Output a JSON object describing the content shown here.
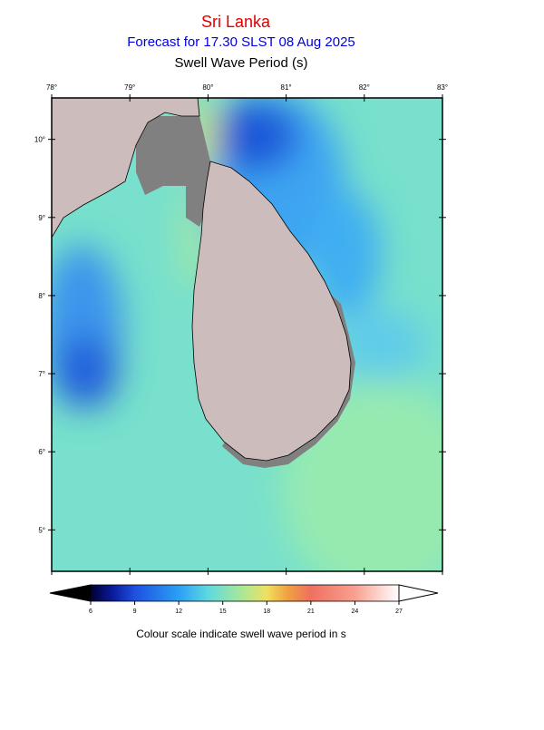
{
  "header": {
    "title": "Sri Lanka",
    "subtitle": "Forecast for  17.30 SLST 08 Aug 2025",
    "variable": "Swell Wave Period (s)"
  },
  "map": {
    "lonlim": [
      78,
      83
    ],
    "latlim": [
      4.47,
      10.53
    ],
    "lon_ticks": [
      {
        "value": 78,
        "label": "78°"
      },
      {
        "value": 79,
        "label": "79°"
      },
      {
        "value": 80,
        "label": "80°"
      },
      {
        "value": 81,
        "label": "81°"
      },
      {
        "value": 82,
        "label": "82°"
      },
      {
        "value": 83,
        "label": "83°"
      }
    ],
    "lat_ticks": [
      {
        "value": 10,
        "label": "10°"
      },
      {
        "value": 9,
        "label": "9°"
      },
      {
        "value": 8,
        "label": "8°"
      },
      {
        "value": 7,
        "label": "7°"
      },
      {
        "value": 6,
        "label": "6°"
      },
      {
        "value": 5,
        "label": "5°"
      }
    ]
  },
  "colorbar": {
    "ticks": [
      6,
      9,
      12,
      15,
      18,
      21,
      24,
      27
    ],
    "caption": "Colour scale indicate swell wave period in s"
  }
}
